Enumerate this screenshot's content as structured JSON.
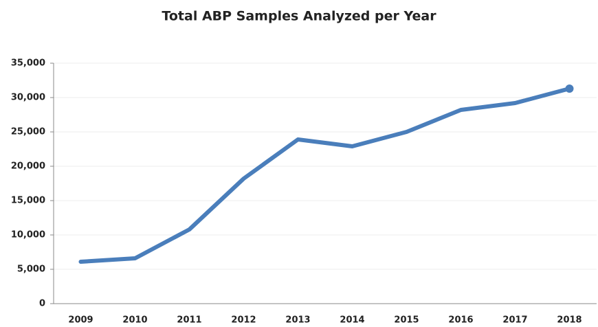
{
  "chart_data": {
    "type": "line",
    "title": "Total ABP Samples Analyzed per Year",
    "categories": [
      "2009",
      "2010",
      "2011",
      "2012",
      "2013",
      "2014",
      "2015",
      "2016",
      "2017",
      "2018"
    ],
    "series": [
      {
        "name": "Total ABP Samples",
        "color": "#4a7ebb",
        "values": [
          6100,
          6600,
          10800,
          18200,
          23900,
          22900,
          25000,
          28200,
          29200,
          31300
        ]
      }
    ],
    "ylim": [
      0,
      35000
    ],
    "yticks": [
      0,
      {
        "value": 5000,
        "label": "5,000"
      },
      {
        "value": 10000,
        "label": "10,000"
      },
      {
        "value": 15000,
        "label": "15,000"
      },
      {
        "value": 20000,
        "label": "20,000"
      },
      {
        "value": 25000,
        "label": "25,000"
      },
      {
        "value": 30000,
        "label": "30,000"
      },
      {
        "value": 35000,
        "label": "35,000"
      }
    ],
    "grid": true
  }
}
